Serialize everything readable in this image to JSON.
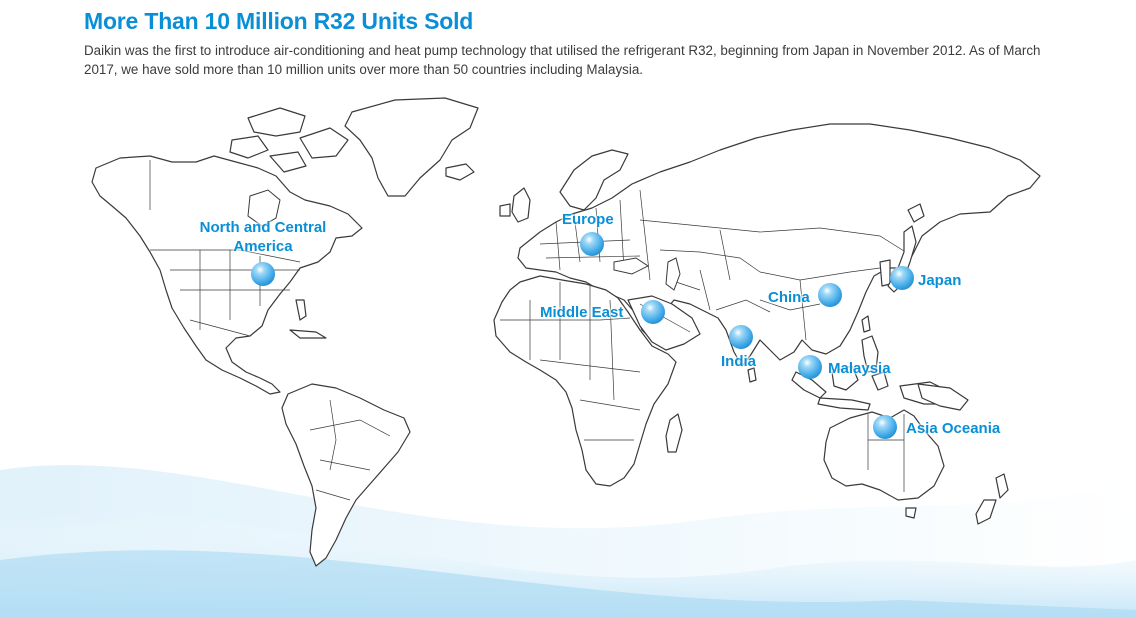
{
  "header": {
    "title": "More Than 10 Million R32 Units Sold",
    "description": "Daikin was the first to introduce air-conditioning and heat pump technology that utilised the refrigerant R32, beginning from Japan in November 2012. As of March 2017, we have sold more than 10 million units over more than 50 countries including Malaysia."
  },
  "colors": {
    "accent": "#0a8fd6",
    "marker": "#5bb8ee",
    "wave": "#cfe9f8"
  },
  "regions": [
    {
      "id": "north-central-america",
      "label_line1": "North and Central",
      "label_line2": "America"
    },
    {
      "id": "europe",
      "label_line1": "Europe"
    },
    {
      "id": "middle-east",
      "label_line1": "Middle East"
    },
    {
      "id": "india",
      "label_line1": "India"
    },
    {
      "id": "china",
      "label_line1": "China"
    },
    {
      "id": "japan",
      "label_line1": "Japan"
    },
    {
      "id": "malaysia",
      "label_line1": "Malaysia"
    },
    {
      "id": "asia-oceania",
      "label_line1": "Asia Oceania"
    }
  ]
}
